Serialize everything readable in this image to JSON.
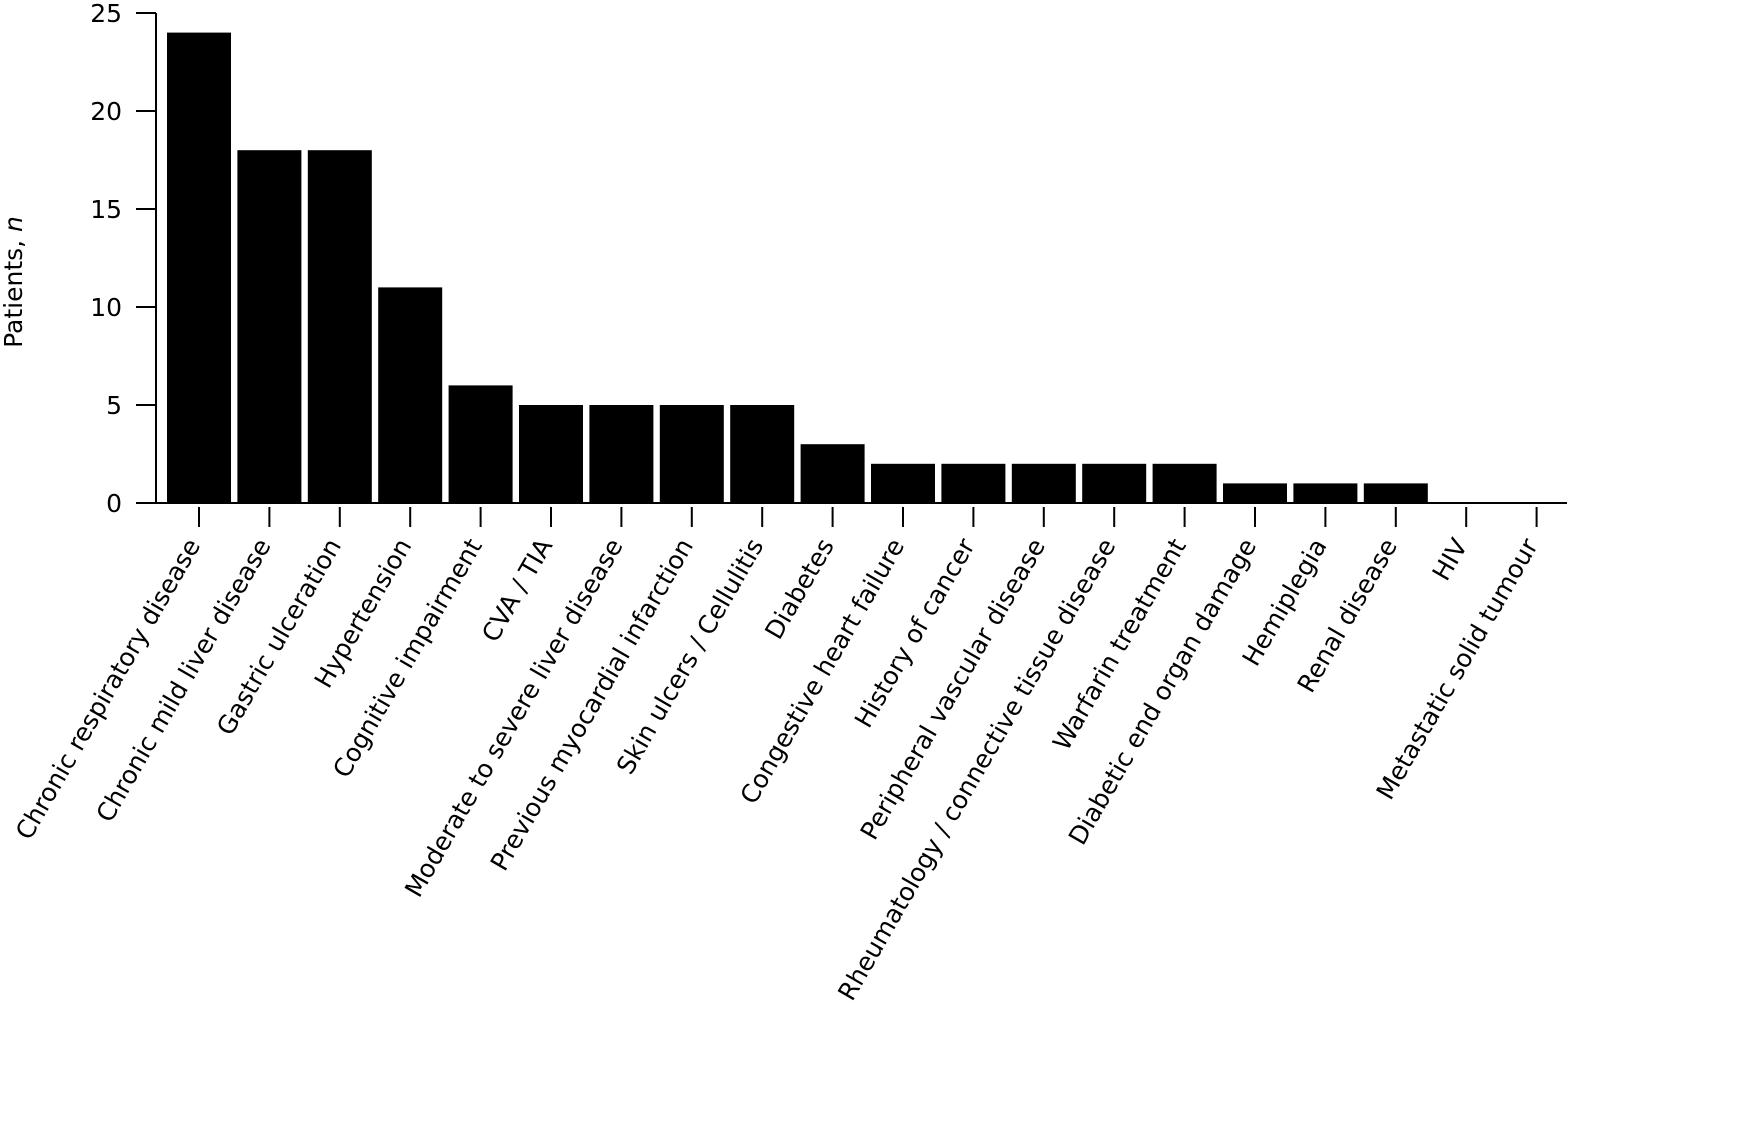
{
  "chart_data": {
    "type": "bar",
    "xlabel": "",
    "ylabel": "Patients, n",
    "ylabel_main": "Patients,",
    "ylabel_var": "n",
    "ylim": [
      0,
      25
    ],
    "yticks": [
      0,
      5,
      10,
      15,
      20,
      25
    ],
    "grid": false,
    "bar_color": "#000000",
    "categories": [
      "Chronic respiratory disease",
      "Chronic mild liver disease",
      "Gastric ulceration",
      "Hypertension",
      "Cognitive impairment",
      "CVA / TIA",
      "Moderate to severe liver disease",
      "Previous myocardial infarction",
      "Skin ulcers / Cellulitis",
      "Diabetes",
      "Congestive heart failure",
      "History of cancer",
      "Peripheral vascular disease",
      "Rheumatology / connective tissue disease",
      "Warfarin treatment",
      "Diabetic end organ damage",
      "Hemiplegia",
      "Renal disease",
      "HIV",
      "Metastatic solid tumour"
    ],
    "values": [
      24,
      18,
      18,
      11,
      6,
      5,
      5,
      5,
      5,
      3,
      2,
      2,
      2,
      2,
      2,
      1,
      1,
      1,
      0,
      0
    ]
  }
}
